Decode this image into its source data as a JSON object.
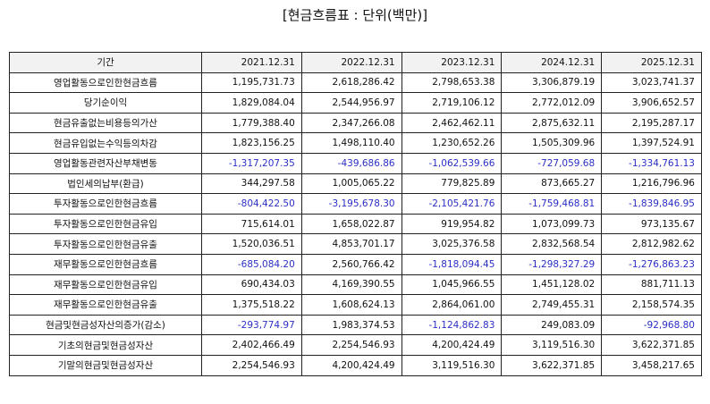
{
  "title": "[현금흐름표 : 단위(백만)]",
  "colors": {
    "negative": "#2b2fc6",
    "header_bg": "#f2f2f2",
    "border": "#222222"
  },
  "columns": [
    "기간",
    "2021.12.31",
    "2022.12.31",
    "2023.12.31",
    "2024.12.31",
    "2025.12.31"
  ],
  "rows": [
    {
      "label": "영업활동으로인한현금흐름",
      "values": [
        "1,195,731.73",
        "2,618,286.42",
        "2,798,653.38",
        "3,306,879.19",
        "3,023,741.37"
      ]
    },
    {
      "label": "당기순이익",
      "values": [
        "1,829,084.04",
        "2,544,956.97",
        "2,719,106.12",
        "2,772,012.09",
        "3,906,652.57"
      ]
    },
    {
      "label": "현금유출없는비용등의가산",
      "values": [
        "1,779,388.40",
        "2,347,266.08",
        "2,462,462.11",
        "2,875,632.11",
        "2,195,287.17"
      ]
    },
    {
      "label": "현금유입없는수익등의차감",
      "values": [
        "1,823,156.25",
        "1,498,110.40",
        "1,230,652.26",
        "1,505,309.96",
        "1,397,524.91"
      ]
    },
    {
      "label": "영업활동관련자산부채변동",
      "values": [
        "-1,317,207.35",
        "-439,686.86",
        "-1,062,539.66",
        "-727,059.68",
        "-1,334,761.13"
      ]
    },
    {
      "label": "법인세의납부(환급)",
      "values": [
        "344,297.58",
        "1,005,065.22",
        "779,825.89",
        "873,665.27",
        "1,216,796.96"
      ]
    },
    {
      "label": "투자활동으로인한현금흐름",
      "values": [
        "-804,422.50",
        "-3,195,678.30",
        "-2,105,421.76",
        "-1,759,468.81",
        "-1,839,846.95"
      ]
    },
    {
      "label": "투자활동으로인한현금유입",
      "values": [
        "715,614.01",
        "1,658,022.87",
        "919,954.82",
        "1,073,099.73",
        "973,135.67"
      ]
    },
    {
      "label": "투자활동으로인한현금유출",
      "values": [
        "1,520,036.51",
        "4,853,701.17",
        "3,025,376.58",
        "2,832,568.54",
        "2,812,982.62"
      ]
    },
    {
      "label": "재무활동으로인한현금흐름",
      "values": [
        "-685,084.20",
        "2,560,766.42",
        "-1,818,094.45",
        "-1,298,327.29",
        "-1,276,863.23"
      ]
    },
    {
      "label": "재무활동으로인한현금유입",
      "values": [
        "690,434.03",
        "4,169,390.55",
        "1,045,966.55",
        "1,451,128.02",
        "881,711.13"
      ]
    },
    {
      "label": "재무활동으로인한현금유출",
      "values": [
        "1,375,518.22",
        "1,608,624.13",
        "2,864,061.00",
        "2,749,455.31",
        "2,158,574.35"
      ]
    },
    {
      "label": "현금및현금성자산의증가(감소)",
      "values": [
        "-293,774.97",
        "1,983,374.53",
        "-1,124,862.83",
        "249,083.09",
        "-92,968.80"
      ]
    },
    {
      "label": "기초의현금및현금성자산",
      "values": [
        "2,402,466.49",
        "2,254,546.93",
        "4,200,424.49",
        "3,119,516.30",
        "3,622,371.85"
      ]
    },
    {
      "label": "기말의현금및현금성자산",
      "values": [
        "2,254,546.93",
        "4,200,424.49",
        "3,119,516.30",
        "3,622,371.85",
        "3,458,217.65"
      ]
    }
  ]
}
